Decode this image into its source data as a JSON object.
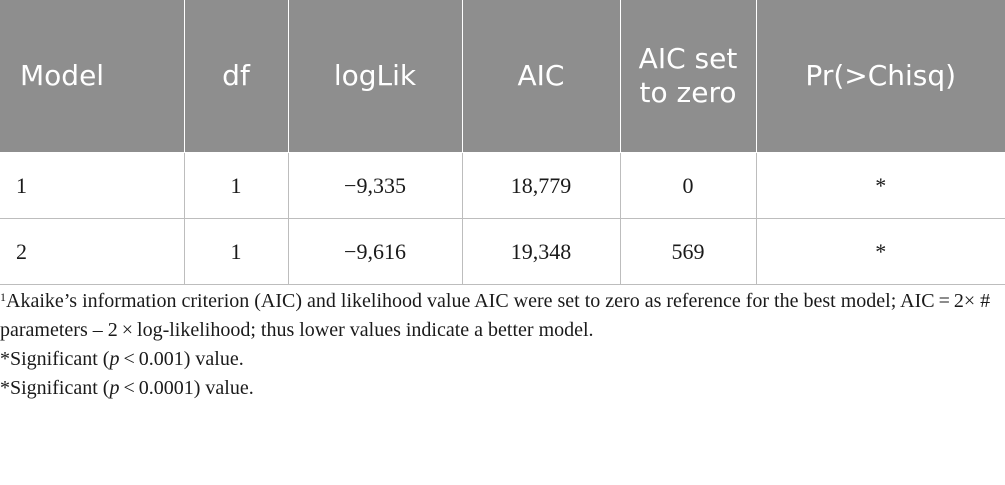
{
  "table": {
    "headers": [
      "Model",
      "df",
      "logLik",
      "AIC",
      "AIC set to zero",
      "Pr(>Chisq)"
    ],
    "rows": [
      [
        "1",
        "1",
        "−9,335",
        "18,779",
        "0",
        "*"
      ],
      [
        "2",
        "1",
        "−9,616",
        "19,348",
        "569",
        "*"
      ]
    ]
  },
  "footnotes": {
    "note1_marker": "1",
    "note1_text": "Akaike’s information criterion (AIC) and likelihood value AIC were set to zero as reference for the best model; AIC = 2× # parameters – 2 × log-likelihood; thus lower values indicate a better model.",
    "note2_pre": "*Significant (",
    "note2_p": "p",
    "note2_post": " < 0.001) value.",
    "note3_pre": "*Significant (",
    "note3_p": "p",
    "note3_post": " < 0.0001) value."
  }
}
